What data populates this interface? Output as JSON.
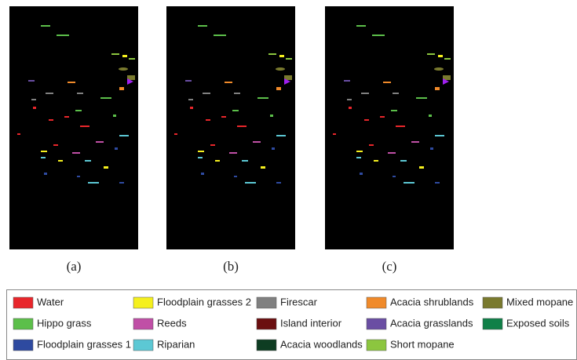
{
  "panels": [
    {
      "label": "(a)"
    },
    {
      "label": "(b)"
    },
    {
      "label": "(c)"
    }
  ],
  "legend": {
    "items": [
      {
        "name": "Water",
        "color": "#e8262b"
      },
      {
        "name": "Hippo grass",
        "color": "#5cbf4a"
      },
      {
        "name": "Floodplain grasses 1",
        "color": "#2e4aa0"
      },
      {
        "name": "Floodplain grasses 2",
        "color": "#f5f01e"
      },
      {
        "name": "Reeds",
        "color": "#c04fa6"
      },
      {
        "name": "Riparian",
        "color": "#5cc8d4"
      },
      {
        "name": "Firescar",
        "color": "#808080"
      },
      {
        "name": "Island interior",
        "color": "#6b0f10"
      },
      {
        "name": "Acacia woodlands",
        "color": "#0e3d22"
      },
      {
        "name": "Acacia shrublands",
        "color": "#f08a2a"
      },
      {
        "name": "Acacia grasslands",
        "color": "#6a4ea3"
      },
      {
        "name": "Short mopane",
        "color": "#8cc63f"
      },
      {
        "name": "Mixed mopane",
        "color": "#7a7a2e"
      },
      {
        "name": "Exposed soils",
        "color": "#108048"
      }
    ]
  }
}
